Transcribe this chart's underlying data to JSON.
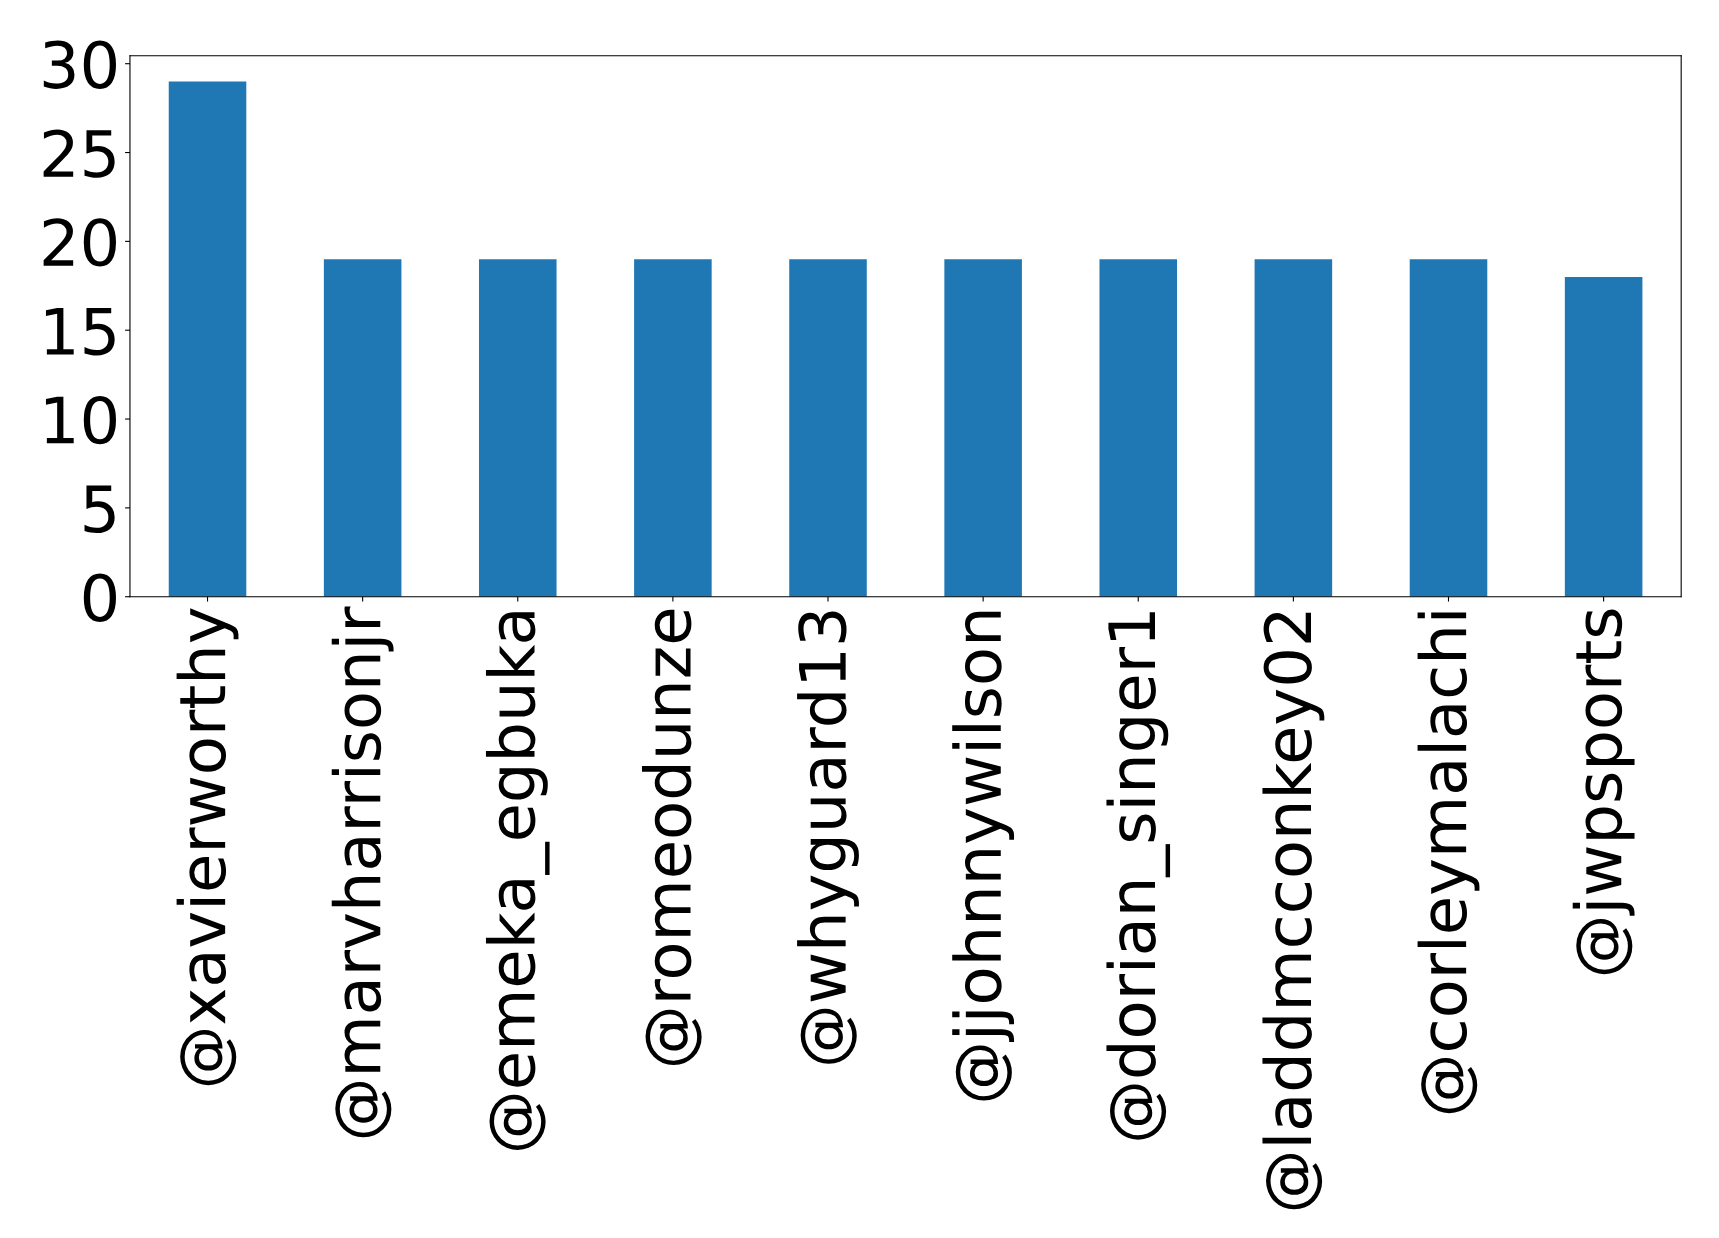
{
  "chart_data": {
    "type": "bar",
    "categories": [
      "@xavierworthy",
      "@marvharrisonjr",
      "@emeka_egbuka",
      "@romeodunze",
      "@whyguard13",
      "@jjohnnywilson",
      "@dorian_singer1",
      "@laddmcconkey02",
      "@corleymalachi",
      "@jwpsports"
    ],
    "values": [
      29,
      19,
      19,
      19,
      19,
      19,
      19,
      19,
      19,
      18
    ],
    "color": "#1f77b4",
    "ylim": [
      0,
      30.45
    ],
    "yticks": [
      0,
      5,
      10,
      15,
      20,
      25,
      30
    ],
    "grid": false,
    "legend": false
  }
}
